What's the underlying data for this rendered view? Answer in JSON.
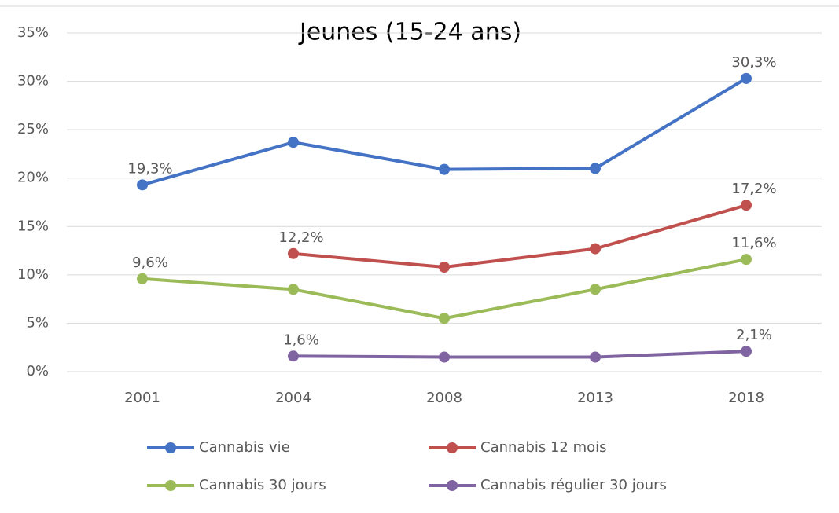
{
  "chart_data": {
    "type": "line",
    "title": "Jeunes (15-24 ans)",
    "categories": [
      "2001",
      "2004",
      "2008",
      "2013",
      "2018"
    ],
    "ylim": [
      0,
      35
    ],
    "yticks": [
      {
        "value": 0,
        "label": "0%"
      },
      {
        "value": 5,
        "label": "5%"
      },
      {
        "value": 10,
        "label": "10%"
      },
      {
        "value": 15,
        "label": "15%"
      },
      {
        "value": 20,
        "label": "20%"
      },
      {
        "value": 25,
        "label": "25%"
      },
      {
        "value": 30,
        "label": "30%"
      },
      {
        "value": 35,
        "label": "35%"
      }
    ],
    "grid": true,
    "legend": "bottom",
    "series": [
      {
        "name": "Cannabis vie",
        "color": "#4472c4",
        "values": [
          19.3,
          23.7,
          20.9,
          21.0,
          30.3
        ],
        "value_labels": [
          "19,3%",
          null,
          null,
          null,
          "30,3%"
        ]
      },
      {
        "name": "Cannabis 12 mois",
        "color": "#c0504d",
        "values": [
          null,
          12.2,
          10.8,
          12.7,
          17.2
        ],
        "value_labels": [
          null,
          "12,2%",
          null,
          null,
          "17,2%"
        ]
      },
      {
        "name": "Cannabis 30 jours",
        "color": "#9bbb59",
        "values": [
          9.6,
          8.5,
          5.5,
          8.5,
          11.6
        ],
        "value_labels": [
          "9,6%",
          null,
          null,
          null,
          "11,6%"
        ]
      },
      {
        "name": "Cannabis régulier 30 jours",
        "color": "#8064a2",
        "values": [
          null,
          1.6,
          1.5,
          1.5,
          2.1
        ],
        "value_labels": [
          null,
          "1,6%",
          null,
          null,
          "2,1%"
        ]
      }
    ]
  }
}
